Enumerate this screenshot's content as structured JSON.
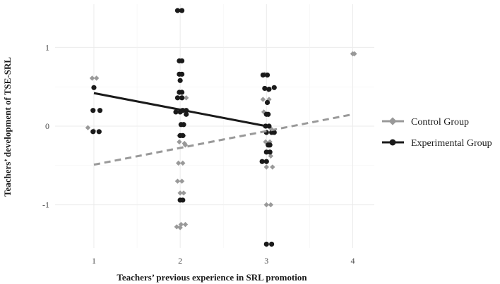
{
  "chart_data": {
    "type": "scatter",
    "title": "",
    "xlabel": "Teachers’ previous experience in SRL promotion",
    "ylabel": "Teachers’ development of TSE-SRL",
    "xlim": [
      0.55,
      4.25
    ],
    "ylim": [
      -1.55,
      1.55
    ],
    "xticks": [
      1,
      2,
      3,
      4
    ],
    "xtick_labels": [
      "1",
      "2",
      "3",
      "4"
    ],
    "yticks": [
      -1,
      0,
      1
    ],
    "ytick_labels": [
      "-1",
      "0",
      "1"
    ],
    "grid": true,
    "legend_position": "right",
    "series": [
      {
        "name": "Control Group",
        "color": "#999999",
        "marker": "diamond",
        "line_style": "dashed",
        "trend": [
          [
            1,
            -0.49
          ],
          [
            4,
            0.15
          ]
        ],
        "points": [
          [
            0.93,
            -0.02
          ],
          [
            0.98,
            0.61
          ],
          [
            1.03,
            0.61
          ],
          [
            1.0,
            -0.06
          ],
          [
            1.96,
            -1.28
          ],
          [
            2.01,
            -1.25
          ],
          [
            2.06,
            -1.25
          ],
          [
            2.0,
            -1.29
          ],
          [
            1.97,
            -0.7
          ],
          [
            2.02,
            -0.7
          ],
          [
            1.98,
            -0.47
          ],
          [
            2.03,
            -0.47
          ],
          [
            1.99,
            -0.12
          ],
          [
            2.04,
            -0.12
          ],
          [
            1.99,
            -0.2
          ],
          [
            2.05,
            -0.22
          ],
          [
            2.0,
            -0.85
          ],
          [
            2.04,
            -0.85
          ],
          [
            2.07,
            0.36
          ],
          [
            2.03,
            0.36
          ],
          [
            2.01,
            0.2
          ],
          [
            2.06,
            -0.24
          ],
          [
            2.96,
            0.34
          ],
          [
            3.03,
            0.34
          ],
          [
            2.98,
            0.66
          ],
          [
            3.02,
            0.46
          ],
          [
            2.99,
            -0.2
          ],
          [
            3.04,
            -0.2
          ],
          [
            3.05,
            -0.38
          ],
          [
            3.0,
            -0.52
          ],
          [
            3.07,
            -0.52
          ],
          [
            3.0,
            -1.0
          ],
          [
            3.05,
            -1.0
          ],
          [
            3.02,
            0.0
          ],
          [
            3.06,
            -0.04
          ],
          [
            2.97,
            0.18
          ],
          [
            4.0,
            0.92
          ],
          [
            4.02,
            0.92
          ]
        ]
      },
      {
        "name": "Experimental Group",
        "color": "#1a1a1a",
        "marker": "circle",
        "line_style": "solid",
        "trend": [
          [
            1,
            0.42
          ],
          [
            3,
            0.0
          ]
        ],
        "points": [
          [
            1.0,
            0.49
          ],
          [
            0.99,
            0.2
          ],
          [
            1.07,
            0.2
          ],
          [
            0.99,
            -0.07
          ],
          [
            1.06,
            -0.07
          ],
          [
            1.97,
            1.47
          ],
          [
            2.02,
            1.47
          ],
          [
            1.99,
            0.83
          ],
          [
            2.02,
            0.83
          ],
          [
            1.99,
            0.66
          ],
          [
            2.02,
            0.66
          ],
          [
            2.0,
            0.58
          ],
          [
            1.99,
            0.43
          ],
          [
            2.02,
            0.43
          ],
          [
            1.97,
            0.36
          ],
          [
            2.02,
            0.36
          ],
          [
            1.95,
            0.18
          ],
          [
            2.0,
            0.18
          ],
          [
            2.03,
            0.2
          ],
          [
            2.07,
            0.2
          ],
          [
            2.07,
            0.15
          ],
          [
            2.01,
            0.02
          ],
          [
            2.04,
            0.02
          ],
          [
            2.0,
            -0.12
          ],
          [
            2.03,
            -0.12
          ],
          [
            2.0,
            -0.94
          ],
          [
            2.03,
            -0.94
          ],
          [
            2.96,
            0.65
          ],
          [
            3.01,
            0.65
          ],
          [
            2.98,
            0.48
          ],
          [
            3.03,
            0.47
          ],
          [
            3.09,
            0.49
          ],
          [
            3.01,
            0.3
          ],
          [
            3.0,
            0.15
          ],
          [
            3.02,
            0.15
          ],
          [
            2.99,
            0.0
          ],
          [
            3.03,
            0.0
          ],
          [
            3.0,
            -0.08
          ],
          [
            3.06,
            -0.08
          ],
          [
            3.09,
            -0.08
          ],
          [
            3.02,
            -0.24
          ],
          [
            3.04,
            -0.24
          ],
          [
            3.0,
            -0.33
          ],
          [
            3.04,
            -0.33
          ],
          [
            2.95,
            -0.45
          ],
          [
            3.0,
            -0.45
          ],
          [
            3.0,
            -1.5
          ],
          [
            3.06,
            -1.5
          ]
        ]
      }
    ]
  }
}
